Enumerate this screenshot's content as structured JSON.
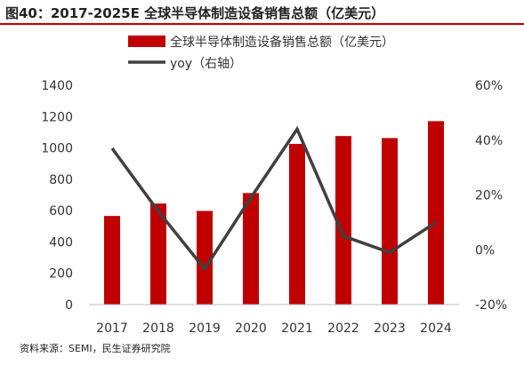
{
  "figure": {
    "title": "图40：2017-2025E 全球半导体制造设备销售总额（亿美元）",
    "source": "资料来源：SEMI，民生证券研究院"
  },
  "chart_data": {
    "type": "bar",
    "title": "",
    "categories": [
      "2017",
      "2018",
      "2019",
      "2020",
      "2021",
      "2022",
      "2023",
      "2024"
    ],
    "series": [
      {
        "name": "全球半导体制造设备销售总额（亿美元）",
        "type": "bar",
        "axis": "left",
        "color": "#c00000",
        "values": [
          566,
          645,
          598,
          712,
          1026,
          1076,
          1063,
          1171
        ]
      },
      {
        "name": "yoy（右轴）",
        "type": "line",
        "axis": "right",
        "color": "#404040",
        "values": [
          0.37,
          0.14,
          -0.07,
          0.19,
          0.44,
          0.05,
          -0.01,
          0.1
        ]
      }
    ],
    "y_left": {
      "min": 0,
      "max": 1400,
      "step": 200,
      "ticks": [
        "0",
        "200",
        "400",
        "600",
        "800",
        "1000",
        "1200",
        "1400"
      ]
    },
    "y_right": {
      "min": -0.2,
      "max": 0.6,
      "step": 0.2,
      "ticks": [
        "-20%",
        "0%",
        "20%",
        "40%",
        "60%"
      ]
    },
    "legend_position": "top-center",
    "grid": false
  }
}
